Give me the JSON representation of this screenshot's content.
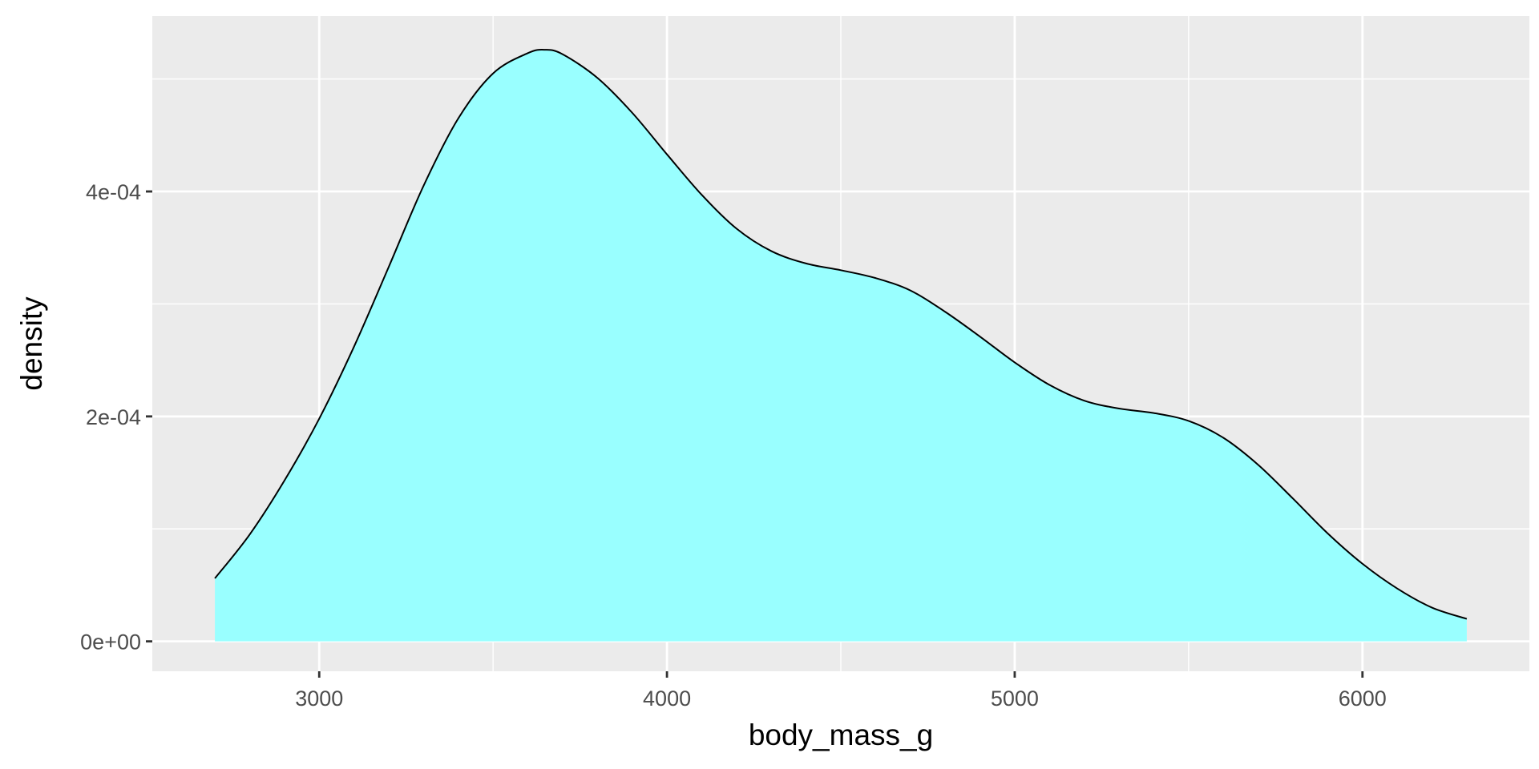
{
  "chart_data": {
    "type": "area",
    "title": "",
    "xlabel": "body_mass_g",
    "ylabel": "density",
    "xlim": [
      2520,
      6480
    ],
    "ylim": [
      -2.66e-05,
      0.000556
    ],
    "x_ticks": [
      3000,
      4000,
      5000,
      6000
    ],
    "x_tick_labels": [
      "3000",
      "4000",
      "5000",
      "6000"
    ],
    "x_minor_ticks": [
      3500,
      4500,
      5500
    ],
    "y_ticks": [
      0,
      0.0002,
      0.0004
    ],
    "y_tick_labels": [
      "0e+00",
      "2e-04",
      "4e-04"
    ],
    "y_minor_ticks": [
      0.0001,
      0.0003,
      0.0005
    ],
    "grid": true,
    "legend": "none",
    "colors": {
      "panel_background": "#ebebeb",
      "grid": "#ffffff",
      "fill": "#99ffff",
      "outline": "#000000",
      "tick_label": "#4d4d4d",
      "axis_title": "#000000"
    },
    "series": [
      {
        "x": [
          2700,
          2800,
          2900,
          3000,
          3100,
          3200,
          3300,
          3400,
          3500,
          3600,
          3650,
          3700,
          3800,
          3900,
          4000,
          4100,
          4200,
          4300,
          4400,
          4500,
          4600,
          4700,
          4800,
          4900,
          5000,
          5100,
          5200,
          5300,
          5400,
          5500,
          5600,
          5700,
          5800,
          5900,
          6000,
          6100,
          6200,
          6300
        ],
        "y": [
          5.6e-05,
          9.5e-05,
          0.000143,
          0.000198,
          0.000262,
          0.000333,
          0.000405,
          0.000465,
          0.000505,
          0.000523,
          0.000526,
          0.000522,
          0.000501,
          0.00047,
          0.000433,
          0.000397,
          0.000367,
          0.000347,
          0.000336,
          0.00033,
          0.000323,
          0.000312,
          0.000293,
          0.000271,
          0.000248,
          0.000228,
          0.000214,
          0.000207,
          0.000203,
          0.000196,
          0.000181,
          0.000157,
          0.000127,
          9.6e-05,
          6.9e-05,
          4.7e-05,
          3e-05,
          2e-05
        ]
      }
    ]
  }
}
